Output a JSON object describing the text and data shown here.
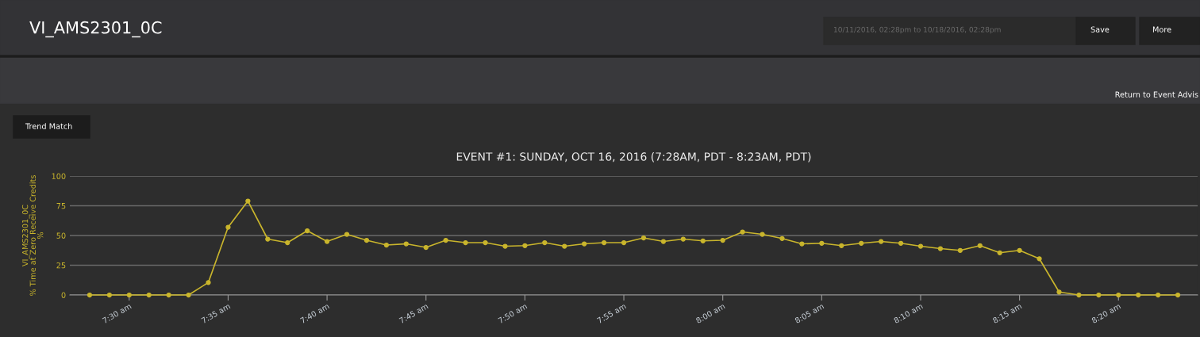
{
  "chart_data": {
    "type": "line",
    "title": "EVENT #1: SUNDAY, OCT 16, 2016 (7:28AM, PDT - 8:23AM, PDT)",
    "ylabel": "VI_AMS2301_0C\n% Time at Zero Receive Credits\n%",
    "annotations": [
      "VI_AMS2301_0C",
      "10/11/2016, 02:28pm to 10/18/2016, 02:28pm",
      "Save",
      "More",
      "Return to Event Advis",
      "Trend Match"
    ],
    "x": [
      "2016-10-16T07:28",
      "2016-10-16T07:29",
      "2016-10-16T07:30",
      "2016-10-16T07:31",
      "2016-10-16T07:32",
      "2016-10-16T07:33",
      "2016-10-16T07:34",
      "2016-10-16T07:35",
      "2016-10-16T07:36",
      "2016-10-16T07:37",
      "2016-10-16T07:38",
      "2016-10-16T07:39",
      "2016-10-16T07:40",
      "2016-10-16T07:41",
      "2016-10-16T07:42",
      "2016-10-16T07:43",
      "2016-10-16T07:44",
      "2016-10-16T07:45",
      "2016-10-16T07:46",
      "2016-10-16T07:47",
      "2016-10-16T07:48",
      "2016-10-16T07:49",
      "2016-10-16T07:50",
      "2016-10-16T07:51",
      "2016-10-16T07:52",
      "2016-10-16T07:53",
      "2016-10-16T07:54",
      "2016-10-16T07:55",
      "2016-10-16T07:56",
      "2016-10-16T07:57",
      "2016-10-16T07:58",
      "2016-10-16T07:59",
      "2016-10-16T08:00",
      "2016-10-16T08:01",
      "2016-10-16T08:02",
      "2016-10-16T08:03",
      "2016-10-16T08:04",
      "2016-10-16T08:05",
      "2016-10-16T08:06",
      "2016-10-16T08:07",
      "2016-10-16T08:08",
      "2016-10-16T08:09",
      "2016-10-16T08:10",
      "2016-10-16T08:11",
      "2016-10-16T08:12",
      "2016-10-16T08:13",
      "2016-10-16T08:14",
      "2016-10-16T08:15",
      "2016-10-16T08:16",
      "2016-10-16T08:17",
      "2016-10-16T08:18",
      "2016-10-16T08:19",
      "2016-10-16T08:20",
      "2016-10-16T08:21",
      "2016-10-16T08:22",
      "2016-10-16T08:23"
    ],
    "series": [
      {
        "color": "#c9b52c",
        "values": [
          0,
          0,
          0,
          0,
          0,
          0,
          10.5,
          57,
          79,
          47,
          44,
          54,
          45,
          51,
          46,
          42,
          43,
          40,
          46,
          44,
          44,
          41,
          41.5,
          44,
          41,
          43,
          44,
          44,
          48,
          45,
          47,
          45.5,
          46,
          53,
          51,
          47.5,
          43,
          43.5,
          41.5,
          43.5,
          45,
          43.5,
          41,
          39,
          37.5,
          41.5,
          35.5,
          37.5,
          30.5,
          2.5,
          0,
          0,
          0,
          0,
          0,
          0
        ]
      }
    ],
    "xlim": [
      "2016-10-16T07:27",
      "2016-10-16T08:24"
    ],
    "xticks": [
      {
        "value": "2016-10-16T07:30",
        "label": "7:30 am"
      },
      {
        "value": "2016-10-16T07:35",
        "label": "7:35 am"
      },
      {
        "value": "2016-10-16T07:40",
        "label": "7:40 am"
      },
      {
        "value": "2016-10-16T07:45",
        "label": "7:45 am"
      },
      {
        "value": "2016-10-16T07:50",
        "label": "7:50 am"
      },
      {
        "value": "2016-10-16T07:55",
        "label": "7:55 am"
      },
      {
        "value": "2016-10-16T08:00",
        "label": "8:00 am"
      },
      {
        "value": "2016-10-16T08:05",
        "label": "8:05 am"
      },
      {
        "value": "2016-10-16T08:10",
        "label": "8:10 am"
      },
      {
        "value": "2016-10-16T08:15",
        "label": "8:15 am"
      },
      {
        "value": "2016-10-16T08:20",
        "label": "8:20 am"
      }
    ],
    "ylim": [
      0,
      100
    ],
    "yticks": [
      0,
      25,
      50,
      75,
      100
    ],
    "grid": "y",
    "marker": "circle",
    "line_style": "solid",
    "legend": false
  }
}
